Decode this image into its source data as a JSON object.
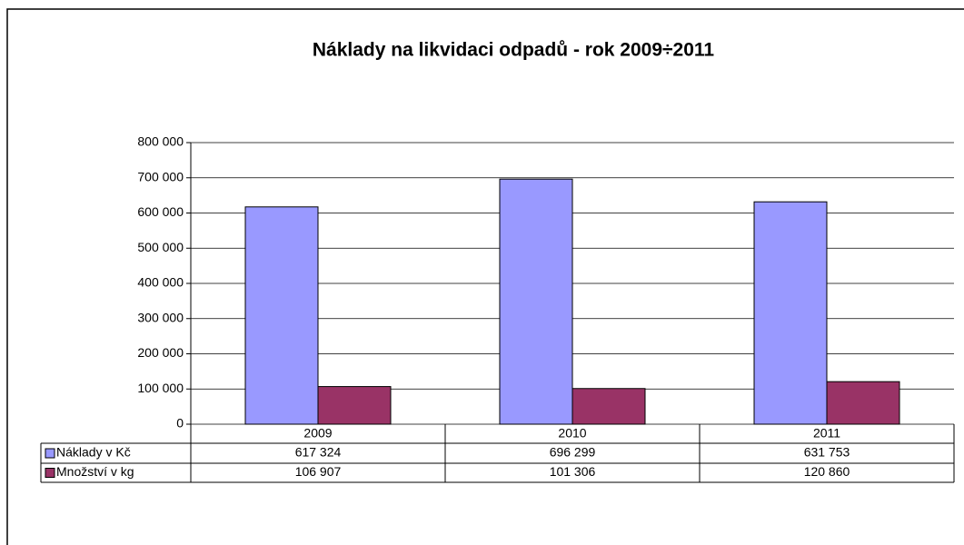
{
  "chart_data": {
    "type": "bar",
    "title": "Náklady na likvidaci odpadů - rok 2009÷2011",
    "categories": [
      "2009",
      "2010",
      "2011"
    ],
    "series": [
      {
        "name": "Náklady v Kč",
        "color": "#9999ff",
        "values": [
          617324,
          696299,
          631753
        ],
        "value_labels": [
          "617 324",
          "696 299",
          "631 753"
        ]
      },
      {
        "name": "Množství v kg",
        "color": "#993366",
        "values": [
          106907,
          101306,
          120860
        ],
        "value_labels": [
          "106 907",
          "101 306",
          "120 860"
        ]
      }
    ],
    "ylim": [
      0,
      800000
    ],
    "yticks": [
      0,
      {
        "value": 100000,
        "label": "100 000"
      },
      {
        "value": 200000,
        "label": "200 000"
      },
      {
        "value": 300000,
        "label": "300 000"
      },
      {
        "value": 400000,
        "label": "400 000"
      },
      {
        "value": 500000,
        "label": "500 000"
      },
      {
        "value": 600000,
        "label": "600 000"
      },
      {
        "value": 700000,
        "label": "700 000"
      },
      {
        "value": 800000,
        "label": "800 000"
      }
    ],
    "grid": true
  }
}
